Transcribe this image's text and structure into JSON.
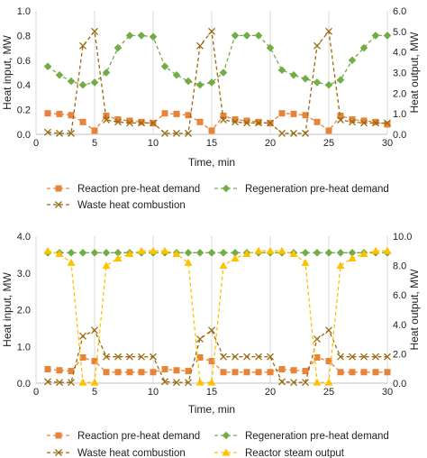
{
  "chart_data": [
    {
      "type": "line",
      "xlabel": "Time, min",
      "ylabel_left": "Heat input, MW",
      "ylabel_right": "Heat output, MW",
      "xlim": [
        0,
        30
      ],
      "ylim_left": [
        0,
        1.0
      ],
      "ylim_right": [
        0,
        6.0
      ],
      "x_ticks": [
        "0",
        "5",
        "10",
        "15",
        "20",
        "25",
        "30"
      ],
      "y_ticks_left": [
        "0.0",
        "0.2",
        "0.4",
        "0.6",
        "0.8",
        "1.0"
      ],
      "y_ticks_right": [
        "0.0",
        "1.0",
        "2.0",
        "3.0",
        "4.0",
        "5.0",
        "6.0"
      ],
      "grid": "vertical at x ticks",
      "legend_position": "bottom",
      "x": [
        1,
        2,
        3,
        4,
        5,
        6,
        7,
        8,
        9,
        10,
        11,
        12,
        13,
        14,
        15,
        16,
        17,
        18,
        19,
        20,
        21,
        22,
        23,
        24,
        25,
        26,
        27,
        28,
        29,
        30
      ],
      "series": [
        {
          "name": "Reaction pre-heat demand",
          "axis": "left",
          "color": "#E8843A",
          "marker": "square",
          "values": [
            0.17,
            0.165,
            0.155,
            0.1,
            0.03,
            0.15,
            0.12,
            0.11,
            0.1,
            0.09,
            0.17,
            0.165,
            0.155,
            0.1,
            0.03,
            0.15,
            0.12,
            0.11,
            0.1,
            0.09,
            0.17,
            0.165,
            0.155,
            0.1,
            0.03,
            0.15,
            0.12,
            0.11,
            0.1,
            0.08
          ]
        },
        {
          "name": "Regeneration pre-heat demand",
          "axis": "left",
          "color": "#70AD47",
          "marker": "diamond",
          "values": [
            0.55,
            0.48,
            0.43,
            0.4,
            0.42,
            0.5,
            0.7,
            0.8,
            0.8,
            0.79,
            0.55,
            0.48,
            0.43,
            0.4,
            0.42,
            0.5,
            0.8,
            0.8,
            0.8,
            0.7,
            0.52,
            0.48,
            0.45,
            0.42,
            0.4,
            0.44,
            0.6,
            0.7,
            0.8,
            0.8
          ]
        },
        {
          "name": "Waste heat combustion",
          "axis": "right",
          "color": "#9A6A10",
          "marker": "x",
          "values": [
            0.1,
            0.05,
            0.05,
            4.3,
            5.0,
            0.7,
            0.6,
            0.55,
            0.55,
            0.55,
            0.05,
            0.05,
            0.05,
            4.3,
            5.0,
            0.7,
            0.6,
            0.55,
            0.55,
            0.55,
            0.05,
            0.05,
            0.05,
            4.3,
            5.0,
            0.7,
            0.6,
            0.55,
            0.55,
            0.55
          ]
        }
      ]
    },
    {
      "type": "line",
      "xlabel": "Time, min",
      "ylabel_left": "Heat input, MW",
      "ylabel_right": "Heat output, MW",
      "xlim": [
        0,
        30
      ],
      "ylim_left": [
        0,
        4.0
      ],
      "ylim_right": [
        0,
        10.0
      ],
      "x_ticks": [
        "0",
        "5",
        "10",
        "15",
        "20",
        "25",
        "30"
      ],
      "y_ticks_left": [
        "0.0",
        "1.0",
        "2.0",
        "3.0",
        "4.0"
      ],
      "y_ticks_right": [
        "0.0",
        "2.0",
        "4.0",
        "6.0",
        "8.0",
        "10.0"
      ],
      "grid": "vertical at x ticks",
      "legend_position": "bottom",
      "x": [
        1,
        2,
        3,
        4,
        5,
        6,
        7,
        8,
        9,
        10,
        11,
        12,
        13,
        14,
        15,
        16,
        17,
        18,
        19,
        20,
        21,
        22,
        23,
        24,
        25,
        26,
        27,
        28,
        29,
        30
      ],
      "series": [
        {
          "name": "Reaction pre-heat demand",
          "axis": "left",
          "color": "#E8843A",
          "marker": "square",
          "values": [
            0.38,
            0.35,
            0.33,
            0.7,
            0.6,
            0.3,
            0.3,
            0.3,
            0.3,
            0.3,
            0.38,
            0.35,
            0.33,
            0.7,
            0.6,
            0.3,
            0.3,
            0.3,
            0.3,
            0.3,
            0.38,
            0.35,
            0.33,
            0.7,
            0.6,
            0.3,
            0.3,
            0.3,
            0.3,
            0.3
          ]
        },
        {
          "name": "Regeneration pre-heat demand",
          "axis": "left",
          "color": "#70AD47",
          "marker": "diamond",
          "values": [
            3.55,
            3.55,
            3.55,
            3.55,
            3.55,
            3.55,
            3.55,
            3.55,
            3.55,
            3.55,
            3.55,
            3.55,
            3.55,
            3.55,
            3.55,
            3.55,
            3.55,
            3.55,
            3.55,
            3.55,
            3.55,
            3.55,
            3.55,
            3.55,
            3.55,
            3.55,
            3.55,
            3.55,
            3.55,
            3.55
          ]
        },
        {
          "name": "Waste heat combustion",
          "axis": "right",
          "color": "#9A6A10",
          "marker": "x",
          "values": [
            0.1,
            0.05,
            0.05,
            3.2,
            3.6,
            1.8,
            1.8,
            1.8,
            1.8,
            1.8,
            0.1,
            0.05,
            0.05,
            3.0,
            3.6,
            1.8,
            1.8,
            1.8,
            1.8,
            1.8,
            0.1,
            0.05,
            0.05,
            3.0,
            3.6,
            1.8,
            1.8,
            1.8,
            1.8,
            1.8
          ]
        },
        {
          "name": "Reactor steam output",
          "axis": "right",
          "color": "#FFC000",
          "marker": "triangle",
          "values": [
            9.0,
            8.8,
            8.2,
            0.05,
            0.05,
            8.0,
            8.5,
            8.8,
            9.0,
            9.0,
            9.0,
            8.8,
            8.2,
            0.05,
            0.05,
            8.0,
            8.5,
            8.8,
            9.0,
            9.0,
            9.0,
            8.8,
            8.2,
            0.05,
            0.05,
            8.0,
            8.5,
            8.8,
            9.0,
            9.0
          ]
        }
      ]
    }
  ]
}
